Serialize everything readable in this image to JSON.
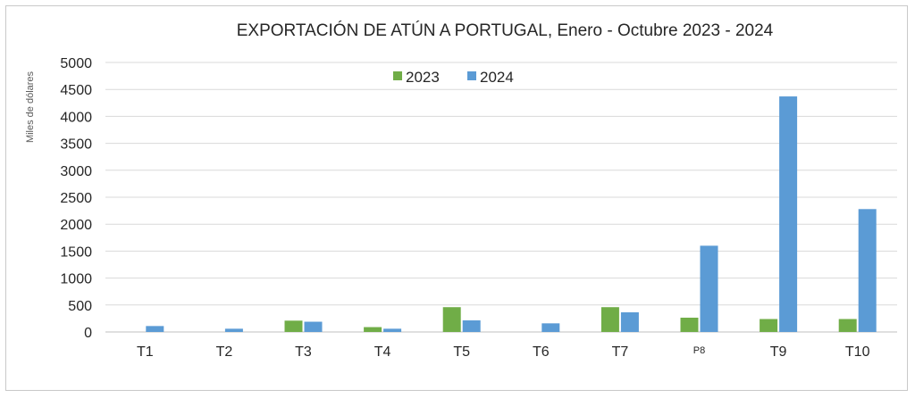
{
  "chart_data": {
    "type": "bar",
    "title": "EXPORTACIÓN DE ATÚN A PORTUGAL, Enero - Octubre 2023 - 2024",
    "ylabel": "Miles de dólares",
    "xlabel": "",
    "ylim": [
      0,
      5000
    ],
    "yticks": [
      0,
      500,
      1000,
      1500,
      2000,
      2500,
      3000,
      3500,
      4000,
      4500,
      5000
    ],
    "grid": true,
    "legend_position": "top-center",
    "categories": [
      "T1",
      "T2",
      "T3",
      "T4",
      "T5",
      "T6",
      "T7",
      "P8",
      "T9",
      "T10"
    ],
    "series": [
      {
        "name": "2023",
        "color": "#70ad47",
        "values": [
          0,
          0,
          210,
          90,
          460,
          0,
          460,
          265,
          240,
          240
        ]
      },
      {
        "name": "2024",
        "color": "#5b9bd5",
        "values": [
          110,
          60,
          190,
          60,
          215,
          160,
          365,
          1600,
          4370,
          2280
        ]
      }
    ]
  }
}
